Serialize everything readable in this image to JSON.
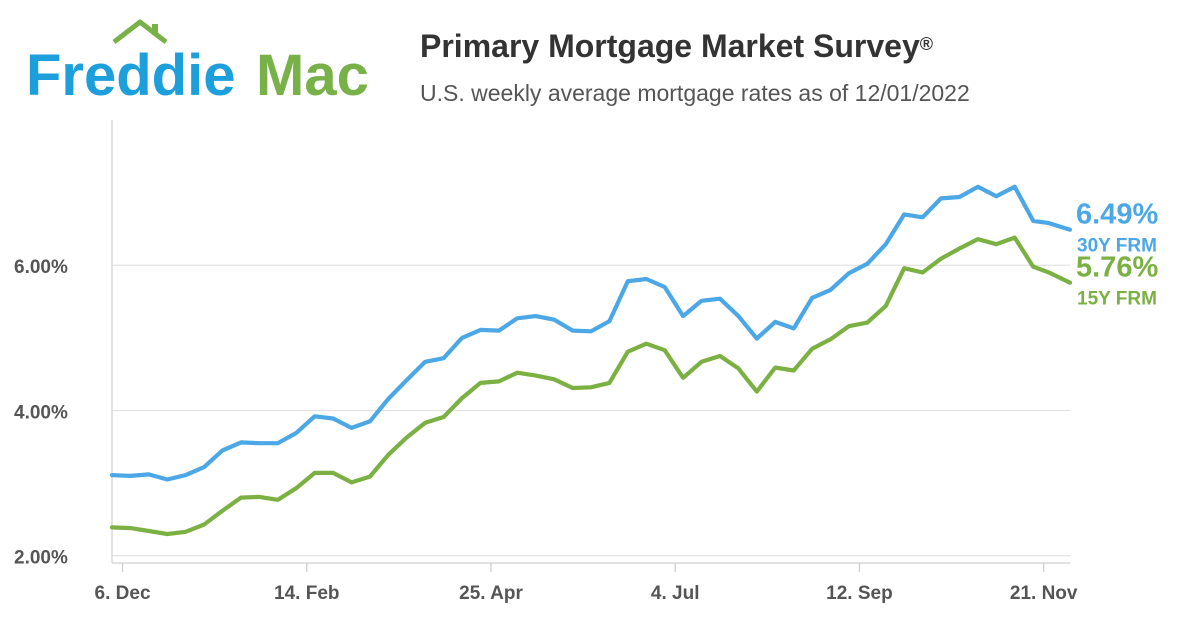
{
  "brand": {
    "name_part1": "Freddie",
    "name_part2": "Mac",
    "blue": "#1d9fdb",
    "green": "#77b148"
  },
  "header": {
    "title": "Primary Mortgage Market Survey",
    "title_mark": "®",
    "subtitle": "U.S. weekly average mortgage rates as of 12/01/2022"
  },
  "chart_data": {
    "type": "line",
    "title": "Primary Mortgage Market Survey",
    "subtitle": "U.S. weekly average mortgage rates as of 12/01/2022",
    "xlabel": "",
    "ylabel": "",
    "ylim": [
      1.9,
      8.0
    ],
    "yticks": [
      2.0,
      4.0,
      6.0
    ],
    "ytick_labels": [
      "2.00%",
      "4.00%",
      "6.00%"
    ],
    "xtick_labels": [
      "6. Dec",
      "14. Feb",
      "25. Apr",
      "4. Jul",
      "12. Sep",
      "21. Nov"
    ],
    "xtick_dates": [
      "2021-12-06",
      "2022-02-14",
      "2022-04-25",
      "2022-07-04",
      "2022-09-12",
      "2022-11-21"
    ],
    "grid": true,
    "legend": "end-labels",
    "x": [
      "2021-12-02",
      "2021-12-09",
      "2021-12-16",
      "2021-12-23",
      "2021-12-30",
      "2022-01-06",
      "2022-01-13",
      "2022-01-20",
      "2022-01-27",
      "2022-02-03",
      "2022-02-10",
      "2022-02-17",
      "2022-02-24",
      "2022-03-03",
      "2022-03-10",
      "2022-03-17",
      "2022-03-24",
      "2022-03-31",
      "2022-04-07",
      "2022-04-14",
      "2022-04-21",
      "2022-04-28",
      "2022-05-05",
      "2022-05-12",
      "2022-05-19",
      "2022-05-26",
      "2022-06-02",
      "2022-06-09",
      "2022-06-16",
      "2022-06-23",
      "2022-06-30",
      "2022-07-07",
      "2022-07-14",
      "2022-07-21",
      "2022-07-28",
      "2022-08-04",
      "2022-08-11",
      "2022-08-18",
      "2022-08-25",
      "2022-09-01",
      "2022-09-08",
      "2022-09-15",
      "2022-09-22",
      "2022-09-29",
      "2022-10-06",
      "2022-10-13",
      "2022-10-20",
      "2022-10-27",
      "2022-11-03",
      "2022-11-10",
      "2022-11-17",
      "2022-11-23",
      "2022-12-01"
    ],
    "series": [
      {
        "name": "30Y FRM",
        "color": "#4ba7e6",
        "end_label": "6.49%",
        "values": [
          3.11,
          3.1,
          3.12,
          3.05,
          3.11,
          3.22,
          3.45,
          3.56,
          3.55,
          3.55,
          3.69,
          3.92,
          3.89,
          3.76,
          3.85,
          4.16,
          4.42,
          4.67,
          4.72,
          5.0,
          5.11,
          5.1,
          5.27,
          5.3,
          5.25,
          5.1,
          5.09,
          5.23,
          5.78,
          5.81,
          5.7,
          5.3,
          5.51,
          5.54,
          5.3,
          4.99,
          5.22,
          5.13,
          5.55,
          5.66,
          5.89,
          6.02,
          6.29,
          6.7,
          6.66,
          6.92,
          6.94,
          7.08,
          6.95,
          7.08,
          6.61,
          6.58,
          6.49
        ]
      },
      {
        "name": "15Y FRM",
        "color": "#7bb043",
        "end_label": "5.76%",
        "values": [
          2.39,
          2.38,
          2.34,
          2.3,
          2.33,
          2.43,
          2.62,
          2.8,
          2.81,
          2.77,
          2.93,
          3.14,
          3.14,
          3.01,
          3.09,
          3.39,
          3.63,
          3.83,
          3.91,
          4.17,
          4.38,
          4.4,
          4.52,
          4.48,
          4.43,
          4.31,
          4.32,
          4.38,
          4.81,
          4.92,
          4.83,
          4.45,
          4.67,
          4.75,
          4.58,
          4.26,
          4.59,
          4.55,
          4.85,
          4.98,
          5.16,
          5.21,
          5.44,
          5.96,
          5.9,
          6.09,
          6.23,
          6.36,
          6.29,
          6.38,
          5.98,
          5.9,
          5.76
        ]
      }
    ]
  }
}
